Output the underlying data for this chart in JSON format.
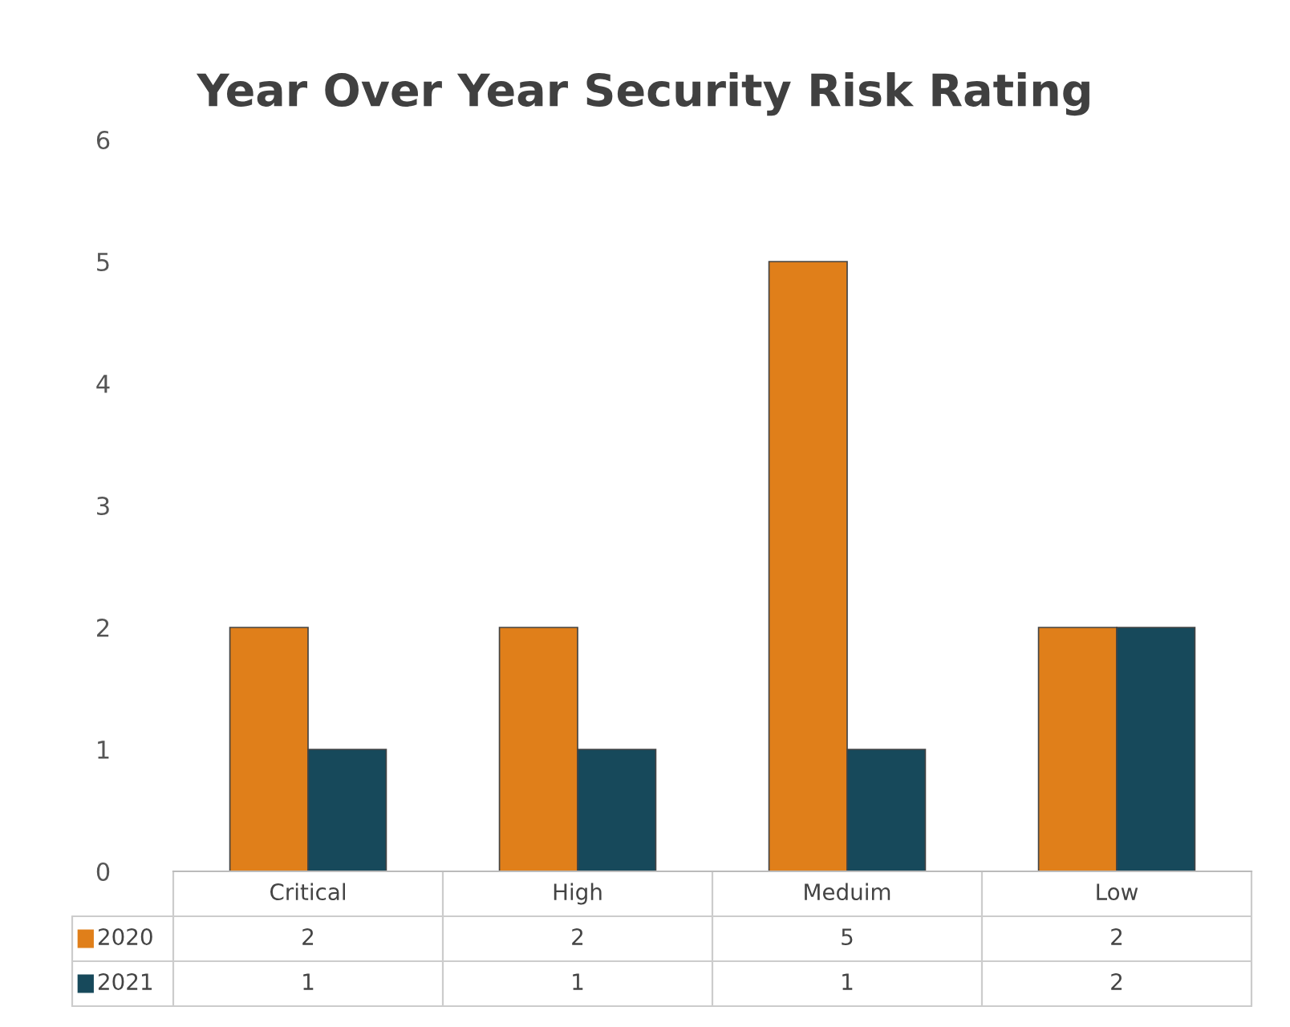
{
  "chart_data": {
    "type": "bar",
    "title": "Year Over Year Security Risk Rating",
    "categories": [
      "Critical",
      "High",
      "Meduim",
      "Low"
    ],
    "series": [
      {
        "name": "2020",
        "color": "#e07f1a",
        "values": [
          2,
          2,
          5,
          2
        ]
      },
      {
        "name": "2021",
        "color": "#17495b",
        "values": [
          1,
          1,
          1,
          2
        ]
      }
    ],
    "ylim": [
      0,
      6
    ],
    "yticks": [
      0,
      1,
      2,
      3,
      4,
      5,
      6
    ],
    "grid": false,
    "data_labels": true,
    "legend": "bottom"
  }
}
